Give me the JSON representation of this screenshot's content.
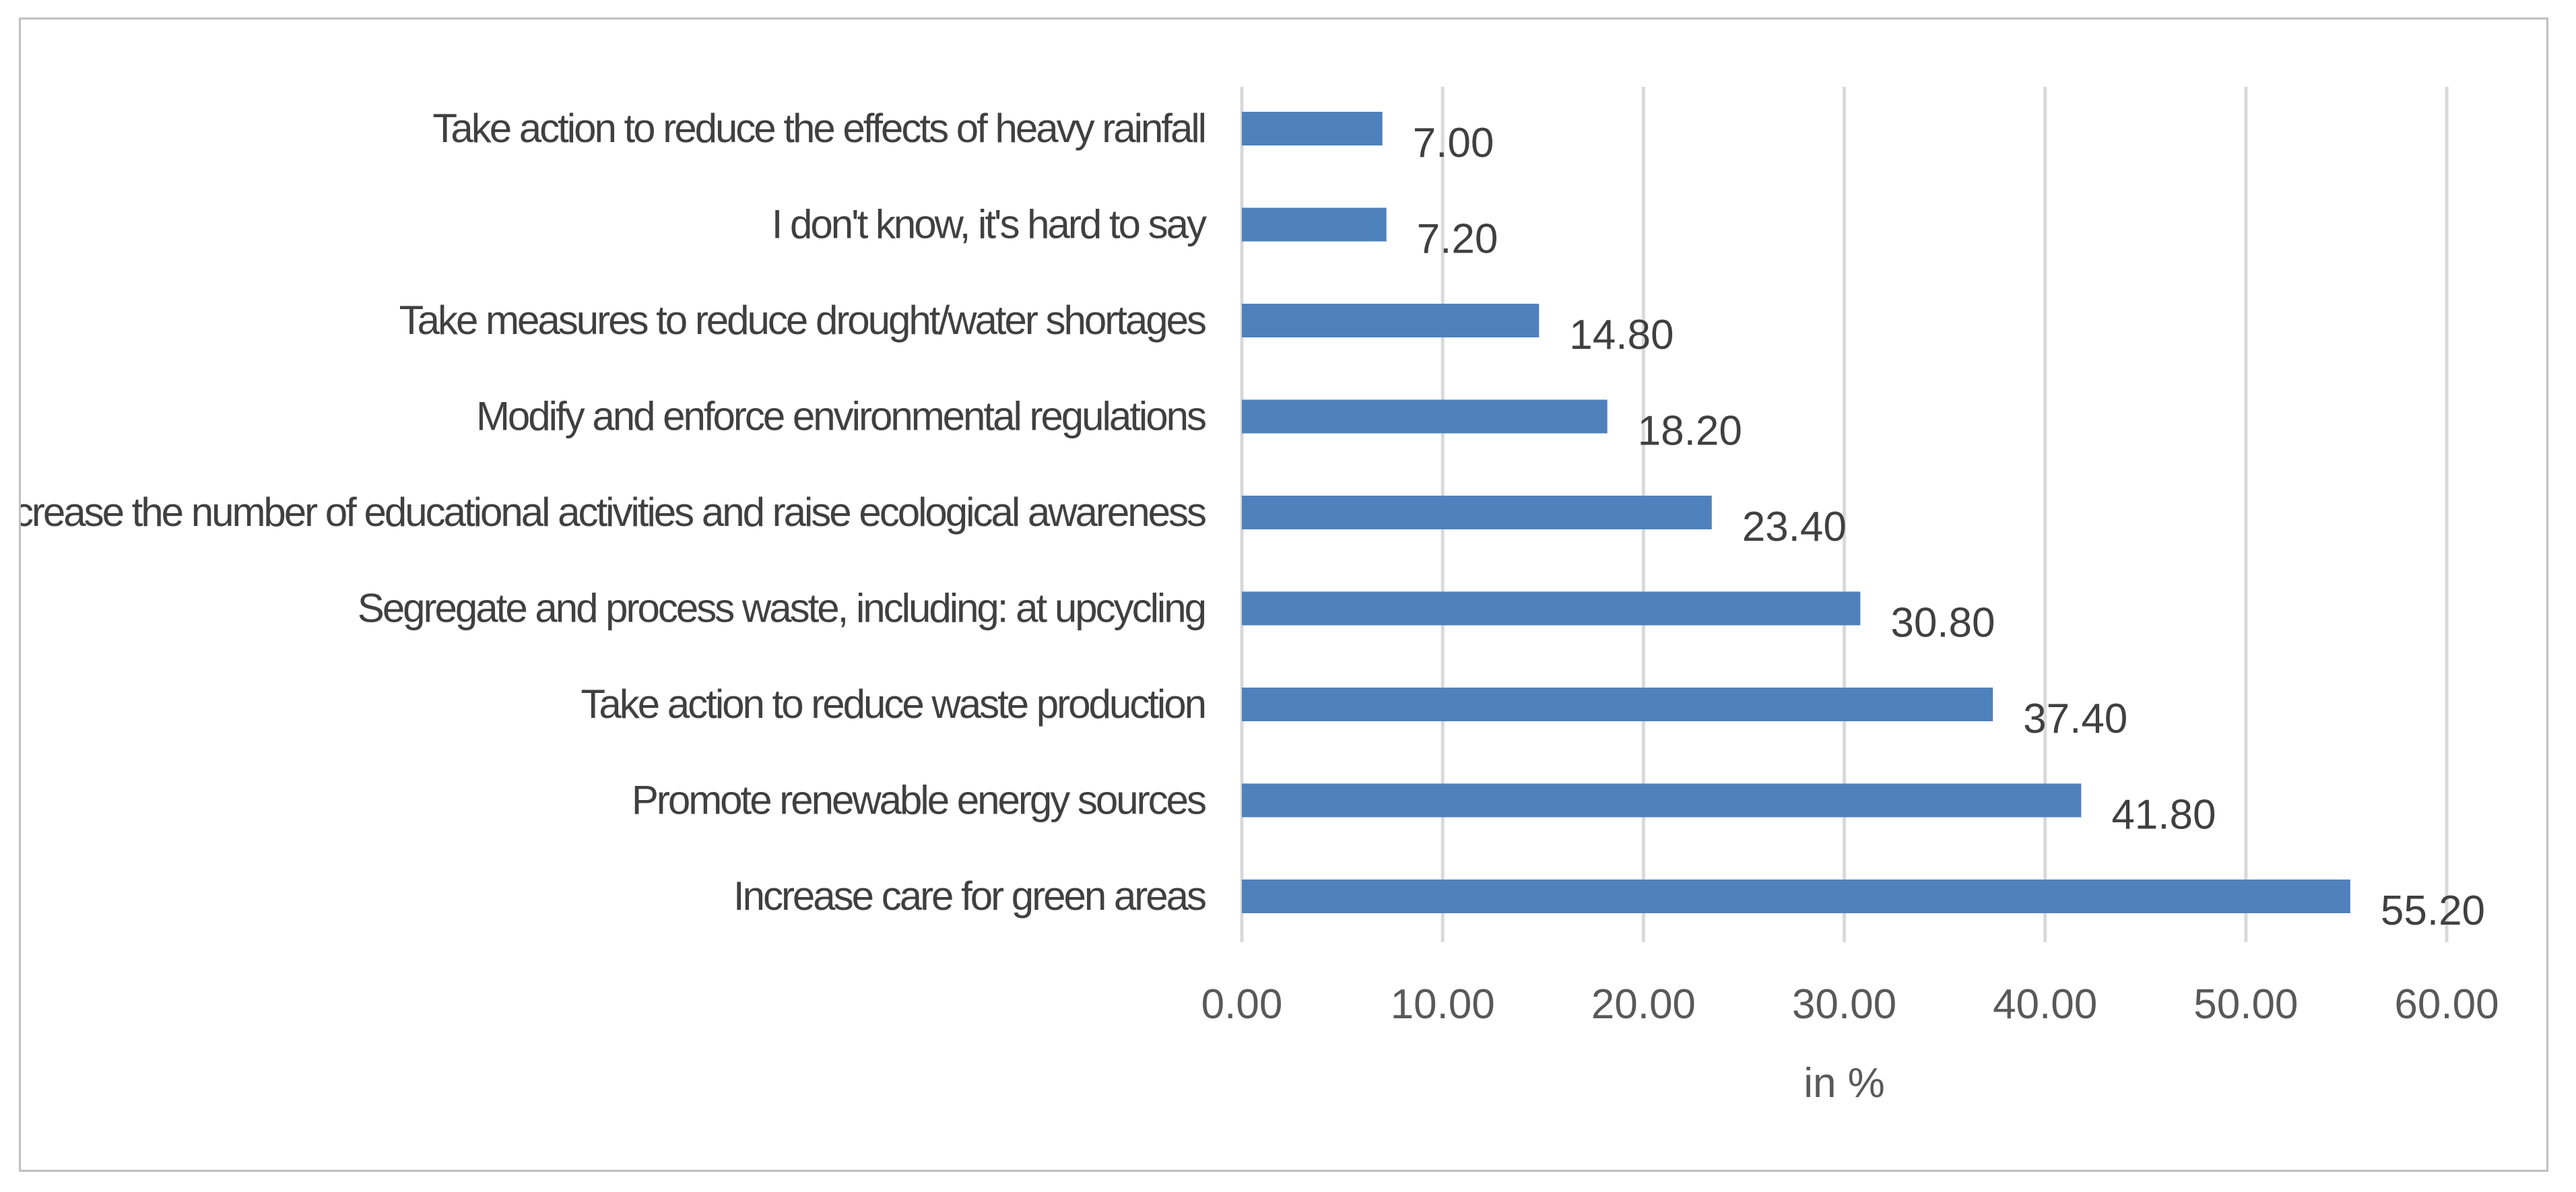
{
  "chart_data": {
    "type": "bar",
    "orientation": "horizontal",
    "title": "",
    "xlabel": "in %",
    "ylabel": "",
    "xlim": [
      0,
      60
    ],
    "tick_values": [
      0,
      10,
      20,
      30,
      40,
      50,
      60
    ],
    "tick_labels": [
      "0.00",
      "10.00",
      "20.00",
      "30.00",
      "40.00",
      "50.00",
      "60.00"
    ],
    "grid": true,
    "categories": [
      "Take action to reduce the effects of heavy rainfall",
      "I don't know, it's hard to say",
      "Take measures to reduce drought/water shortages",
      "Modify and enforce environmental regulations",
      "Increase the number of educational activities and raise ecological awareness",
      "Segregate and process waste, including: at upcycling",
      "Take action to reduce waste production",
      "Promote renewable energy sources",
      "Increase care for green areas"
    ],
    "values": [
      7.0,
      7.2,
      14.8,
      18.2,
      23.4,
      30.8,
      37.4,
      41.8,
      55.2
    ],
    "value_labels": [
      "7.00",
      "7.20",
      "14.80",
      "18.20",
      "23.40",
      "30.80",
      "37.40",
      "41.80",
      "55.20"
    ],
    "bar_color": "#4f81bd"
  }
}
